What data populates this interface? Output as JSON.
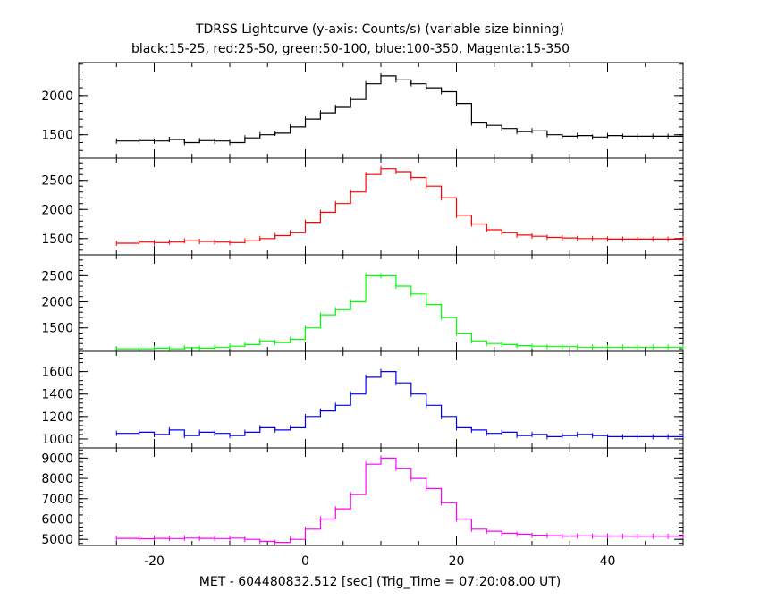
{
  "chart_data": {
    "type": "line",
    "title": "TDRSS Lightcurve (y-axis: Counts/s) (variable size binning)",
    "subtitle": "black:15-25, red:25-50, green:50-100, blue:100-350, Magenta:15-350",
    "xlabel": "MET - 604480832.512 [sec] (Trig_Time = 07:20:08.00 UT)",
    "xlim": [
      -30,
      50
    ],
    "xticks": [
      -20,
      0,
      20,
      40
    ],
    "grid": false,
    "panels": [
      {
        "color": "#000000",
        "ylim": [
          1200,
          2420
        ],
        "yticks": [
          1500,
          2000
        ],
        "x": [
          -25,
          -22,
          -20,
          -18,
          -16,
          -14,
          -12,
          -10,
          -8,
          -6,
          -4,
          -2,
          0,
          2,
          4,
          6,
          8,
          10,
          12,
          14,
          16,
          18,
          20,
          22,
          24,
          26,
          28,
          30,
          32,
          34,
          36,
          38,
          40,
          42,
          44,
          46,
          48,
          50
        ],
        "y": [
          1420,
          1425,
          1420,
          1440,
          1400,
          1425,
          1420,
          1400,
          1460,
          1500,
          1520,
          1600,
          1700,
          1780,
          1850,
          1950,
          2150,
          2250,
          2200,
          2150,
          2100,
          2050,
          1900,
          1650,
          1620,
          1580,
          1540,
          1550,
          1500,
          1480,
          1490,
          1470,
          1490,
          1480,
          1480,
          1480,
          1480,
          1490
        ]
      },
      {
        "color": "#ff0000",
        "ylim": [
          1220,
          2880
        ],
        "yticks": [
          1500,
          2000,
          2500
        ],
        "x": [
          -25,
          -22,
          -20,
          -18,
          -16,
          -14,
          -12,
          -10,
          -8,
          -6,
          -4,
          -2,
          0,
          2,
          4,
          6,
          8,
          10,
          12,
          14,
          16,
          18,
          20,
          22,
          24,
          26,
          28,
          30,
          32,
          34,
          36,
          38,
          40,
          42,
          44,
          46,
          48,
          50
        ],
        "y": [
          1420,
          1440,
          1430,
          1440,
          1460,
          1450,
          1440,
          1430,
          1460,
          1500,
          1550,
          1600,
          1780,
          1950,
          2100,
          2300,
          2600,
          2700,
          2650,
          2550,
          2400,
          2200,
          1900,
          1750,
          1650,
          1600,
          1560,
          1540,
          1520,
          1510,
          1500,
          1500,
          1490,
          1490,
          1490,
          1490,
          1490,
          1500
        ]
      },
      {
        "color": "#00ff00",
        "ylim": [
          1050,
          2900
        ],
        "yticks": [
          1500,
          2000,
          2500
        ],
        "x": [
          -25,
          -22,
          -20,
          -18,
          -16,
          -14,
          -12,
          -10,
          -8,
          -6,
          -4,
          -2,
          0,
          2,
          4,
          6,
          8,
          10,
          12,
          14,
          16,
          18,
          20,
          22,
          24,
          26,
          28,
          30,
          32,
          34,
          36,
          38,
          40,
          42,
          44,
          46,
          48,
          50
        ],
        "y": [
          1100,
          1100,
          1110,
          1100,
          1120,
          1110,
          1130,
          1150,
          1180,
          1250,
          1220,
          1280,
          1500,
          1750,
          1850,
          2000,
          2500,
          2500,
          2300,
          2150,
          1950,
          1700,
          1400,
          1250,
          1200,
          1180,
          1160,
          1150,
          1140,
          1140,
          1130,
          1130,
          1130,
          1130,
          1130,
          1130,
          1130,
          1130
        ]
      },
      {
        "color": "#0000ff",
        "ylim": [
          920,
          1780
        ],
        "yticks": [
          1000,
          1200,
          1400,
          1600
        ],
        "x": [
          -25,
          -22,
          -20,
          -18,
          -16,
          -14,
          -12,
          -10,
          -8,
          -6,
          -4,
          -2,
          0,
          2,
          4,
          6,
          8,
          10,
          12,
          14,
          16,
          18,
          20,
          22,
          24,
          26,
          28,
          30,
          32,
          34,
          36,
          38,
          40,
          42,
          44,
          46,
          48,
          50
        ],
        "y": [
          1050,
          1060,
          1040,
          1080,
          1030,
          1060,
          1050,
          1030,
          1060,
          1100,
          1080,
          1100,
          1200,
          1250,
          1300,
          1400,
          1550,
          1600,
          1500,
          1400,
          1300,
          1200,
          1100,
          1080,
          1050,
          1060,
          1030,
          1040,
          1020,
          1030,
          1040,
          1030,
          1020,
          1020,
          1020,
          1020,
          1020,
          1030
        ]
      },
      {
        "color": "#ff00ff",
        "ylim": [
          4700,
          9500
        ],
        "yticks": [
          5000,
          6000,
          7000,
          8000,
          9000
        ],
        "x": [
          -25,
          -22,
          -20,
          -18,
          -16,
          -14,
          -12,
          -10,
          -8,
          -6,
          -4,
          -2,
          0,
          2,
          4,
          6,
          8,
          10,
          12,
          14,
          16,
          18,
          20,
          22,
          24,
          26,
          28,
          30,
          32,
          34,
          36,
          38,
          40,
          42,
          44,
          46,
          48,
          50
        ],
        "y": [
          5050,
          5030,
          5050,
          5040,
          5060,
          5050,
          5040,
          5060,
          5000,
          4900,
          4850,
          5000,
          5500,
          6000,
          6500,
          7200,
          8700,
          9000,
          8500,
          8000,
          7500,
          6800,
          6000,
          5500,
          5400,
          5300,
          5250,
          5200,
          5180,
          5150,
          5170,
          5150,
          5160,
          5150,
          5150,
          5150,
          5150,
          5170
        ]
      }
    ]
  }
}
